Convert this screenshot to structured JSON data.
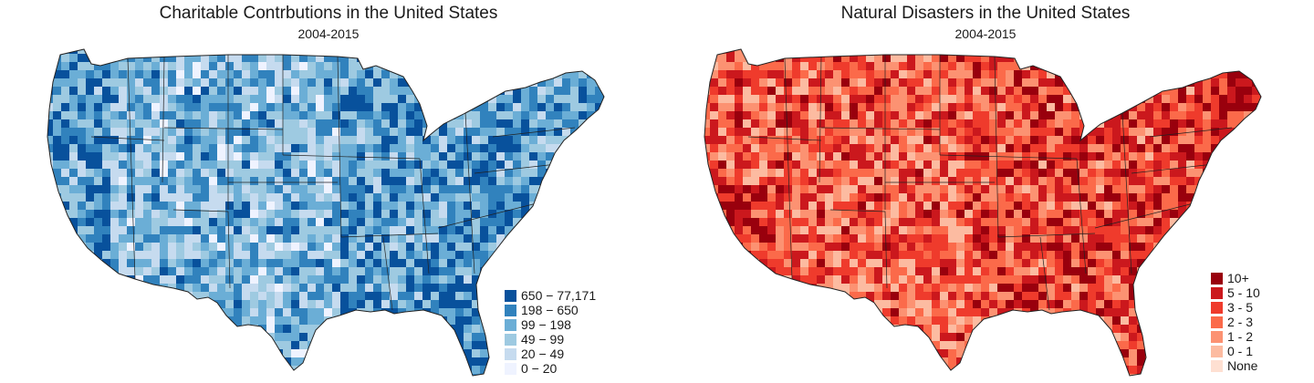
{
  "maps": [
    {
      "title": "Charitable Contrbutions in the United States",
      "subtitle": "2004-2015",
      "legend": [
        {
          "label": "650 − 77,171",
          "color": "#08519c"
        },
        {
          "label": "198 − 650",
          "color": "#3182bd"
        },
        {
          "label": "99 − 198",
          "color": "#6baed6"
        },
        {
          "label": "49 − 99",
          "color": "#9ecae1"
        },
        {
          "label": "20 − 49",
          "color": "#c6dbef"
        },
        {
          "label": "0 − 20",
          "color": "#eff3ff"
        }
      ]
    },
    {
      "title": "Natural Disasters in the United States",
      "subtitle": "2004-2015",
      "legend": [
        {
          "label": "10+",
          "color": "#99000d"
        },
        {
          "label": "5 - 10",
          "color": "#cb181d"
        },
        {
          "label": "3 - 5",
          "color": "#ef3b2c"
        },
        {
          "label": "2 - 3",
          "color": "#fb6a4a"
        },
        {
          "label": "1 - 2",
          "color": "#fc9272"
        },
        {
          "label": "0 - 1",
          "color": "#fcbba1"
        },
        {
          "label": "None",
          "color": "#fee0d2"
        }
      ]
    }
  ]
}
